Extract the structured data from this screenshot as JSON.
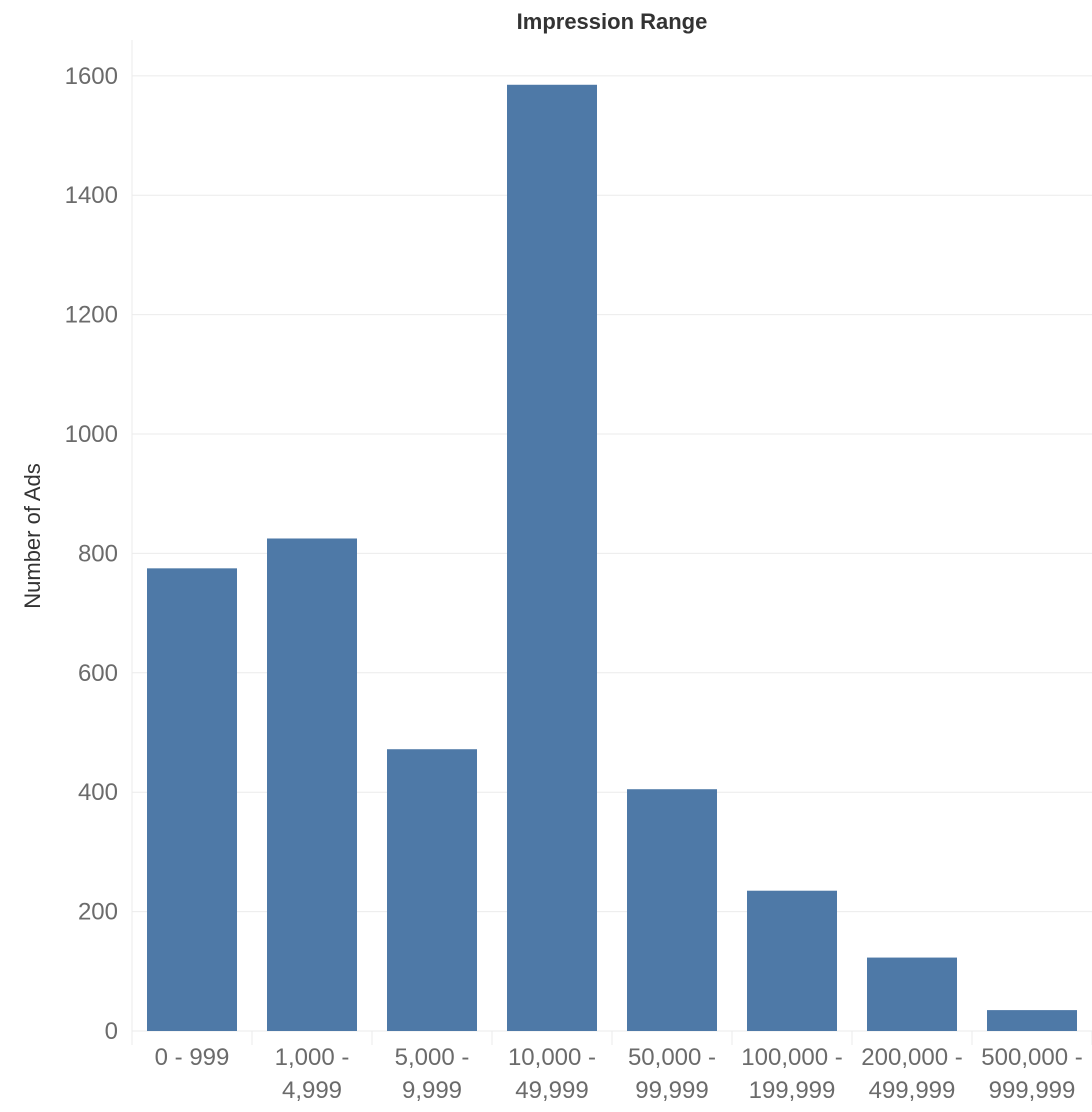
{
  "chart_data": {
    "type": "bar",
    "title": "Impression Range",
    "xlabel": "",
    "ylabel": "Number of Ads",
    "categories": [
      [
        "0 - 999"
      ],
      [
        "1,000 -",
        "4,999"
      ],
      [
        "5,000 -",
        "9,999"
      ],
      [
        "10,000 -",
        "49,999"
      ],
      [
        "50,000 -",
        "99,999"
      ],
      [
        "100,000 -",
        "199,999"
      ],
      [
        "200,000 -",
        "499,999"
      ],
      [
        "500,000 -",
        "999,999"
      ]
    ],
    "values": [
      775,
      825,
      472,
      1585,
      405,
      235,
      123,
      35
    ],
    "ylim": [
      0,
      1660
    ],
    "yticks": [
      0,
      200,
      400,
      600,
      800,
      1000,
      1200,
      1400,
      1600
    ],
    "grid": true,
    "colors": {
      "bar": "#4e79a7",
      "grid": "#ebebeb",
      "tick_text": "#6b6b6b",
      "title_text": "#333333"
    }
  }
}
